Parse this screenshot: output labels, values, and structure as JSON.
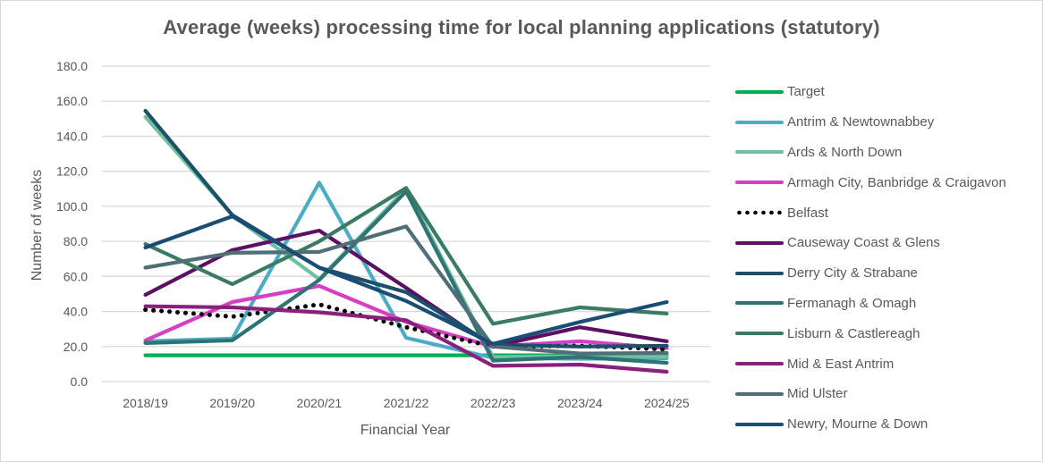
{
  "chart_data": {
    "type": "line",
    "title": "Average (weeks) processing time for local planning applications (statutory)",
    "xlabel": "Financial Year",
    "ylabel": "Number of weeks",
    "ylim": [
      0,
      180
    ],
    "yticks": [
      "0.0",
      "20.0",
      "40.0",
      "60.0",
      "80.0",
      "100.0",
      "120.0",
      "140.0",
      "160.0",
      "180.0"
    ],
    "ytick_values": [
      0,
      20,
      40,
      60,
      80,
      100,
      120,
      140,
      160,
      180
    ],
    "categories": [
      "2018/19",
      "2019/20",
      "2020/21",
      "2021/22",
      "2022/23",
      "2023/24",
      "2024/25"
    ],
    "grid": "horizontal",
    "legend_position": "right",
    "series": [
      {
        "name": "Target",
        "color": "#00b050",
        "style": "solid",
        "values": [
          15,
          15,
          15,
          15,
          15,
          15,
          15
        ]
      },
      {
        "name": "Antrim & Newtownabbey",
        "color": "#4bacc6",
        "style": "solid",
        "values": [
          23,
          24.5,
          113.5,
          25,
          13.5,
          13,
          13.3
        ]
      },
      {
        "name": "Ards & North Down",
        "color": "#70bfa0",
        "style": "solid",
        "values": [
          151,
          95,
          58.5,
          110,
          14,
          14.5,
          14.3
        ]
      },
      {
        "name": "Armagh City, Banbridge & Craigavon",
        "color": "#d63fc3",
        "style": "solid",
        "values": [
          23.5,
          45.4,
          54.6,
          34,
          20,
          23,
          19
        ]
      },
      {
        "name": "Belfast",
        "color": "#000000",
        "style": "dotted",
        "values": [
          41,
          37,
          44,
          31,
          20,
          20.4,
          18.4
        ]
      },
      {
        "name": "Causeway Coast & Glens",
        "color": "#5c0f63",
        "style": "solid",
        "values": [
          49.5,
          75,
          86.2,
          53.5,
          20,
          31,
          23
        ]
      },
      {
        "name": "Derry City & Strabane",
        "color": "#1b5068",
        "style": "solid",
        "values": [
          154.5,
          95,
          65,
          51,
          21,
          20,
          20.4
        ]
      },
      {
        "name": "Fermanagh & Omagh",
        "color": "#2e7475",
        "style": "solid",
        "values": [
          22,
          23.5,
          58,
          108.5,
          12,
          14,
          10.7
        ]
      },
      {
        "name": "Lisburn & Castlereagh",
        "color": "#3a7b64",
        "style": "solid",
        "values": [
          78.5,
          55.6,
          80,
          110.5,
          33,
          42.3,
          38.8
        ]
      },
      {
        "name": "Mid & East Antrim",
        "color": "#8a1f7c",
        "style": "solid",
        "values": [
          43,
          42.3,
          39.5,
          35,
          9,
          9.7,
          5.6
        ]
      },
      {
        "name": "Mid Ulster",
        "color": "#4f6e78",
        "style": "solid",
        "values": [
          65,
          73.5,
          74,
          88.5,
          20,
          16,
          16.3
        ]
      },
      {
        "name": "Newry, Mourne & Down",
        "color": "#1a4d74",
        "style": "solid",
        "values": [
          76.5,
          94.3,
          65,
          46,
          21.5,
          34,
          45.4
        ]
      }
    ]
  }
}
